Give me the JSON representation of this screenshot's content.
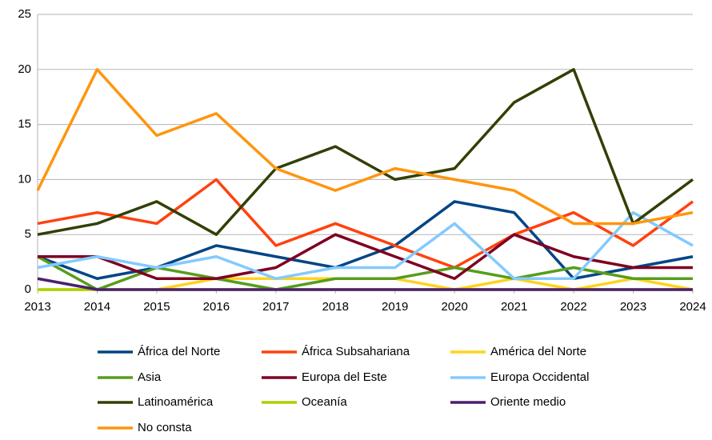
{
  "chart_data": {
    "type": "line",
    "x": [
      2013,
      2014,
      2015,
      2016,
      2017,
      2018,
      2019,
      2020,
      2021,
      2022,
      2023,
      2024
    ],
    "xlim": [
      2013,
      2024
    ],
    "xticks": [
      2013,
      2014,
      2015,
      2016,
      2017,
      2018,
      2019,
      2020,
      2021,
      2022,
      2023,
      2024
    ],
    "ylim": [
      0,
      25
    ],
    "yticks": [
      0,
      5,
      10,
      15,
      20,
      25
    ],
    "grid": true,
    "legend": "bottom",
    "series": [
      {
        "name": "África del Norte",
        "color": "#004586",
        "values": [
          3,
          1,
          2,
          4,
          3,
          2,
          4,
          8,
          7,
          1,
          2,
          3
        ]
      },
      {
        "name": "África Subsahariana",
        "color": "#ff420e",
        "values": [
          6,
          7,
          6,
          10,
          4,
          6,
          4,
          2,
          5,
          7,
          4,
          8
        ]
      },
      {
        "name": "América del Norte",
        "color": "#ffd320",
        "values": [
          0,
          0,
          0,
          1,
          1,
          1,
          1,
          0,
          1,
          0,
          1,
          0
        ]
      },
      {
        "name": "Asia",
        "color": "#579d1c",
        "values": [
          3,
          0,
          2,
          1,
          0,
          1,
          1,
          2,
          1,
          2,
          1,
          1
        ]
      },
      {
        "name": "Europa del Este",
        "color": "#7e0021",
        "values": [
          3,
          3,
          1,
          1,
          2,
          5,
          3,
          1,
          5,
          3,
          2,
          2
        ]
      },
      {
        "name": "Europa Occidental",
        "color": "#83caff",
        "values": [
          2,
          3,
          2,
          3,
          1,
          2,
          2,
          6,
          1,
          1,
          7,
          4
        ]
      },
      {
        "name": "Latinoamérica",
        "color": "#314004",
        "values": [
          5,
          6,
          8,
          5,
          11,
          13,
          10,
          11,
          17,
          20,
          6,
          10
        ]
      },
      {
        "name": "Oceanía",
        "color": "#aecf00",
        "values": [
          0,
          0,
          0,
          0,
          0,
          0,
          0,
          0,
          0,
          0,
          0,
          0
        ]
      },
      {
        "name": "Oriente medio",
        "color": "#4b1f6f",
        "values": [
          1,
          0,
          0,
          0,
          0,
          0,
          0,
          0,
          0,
          0,
          0,
          0
        ]
      },
      {
        "name": "No consta",
        "color": "#ff950e",
        "values": [
          9,
          20,
          14,
          16,
          11,
          9,
          11,
          10,
          9,
          6,
          6,
          7
        ]
      }
    ]
  }
}
